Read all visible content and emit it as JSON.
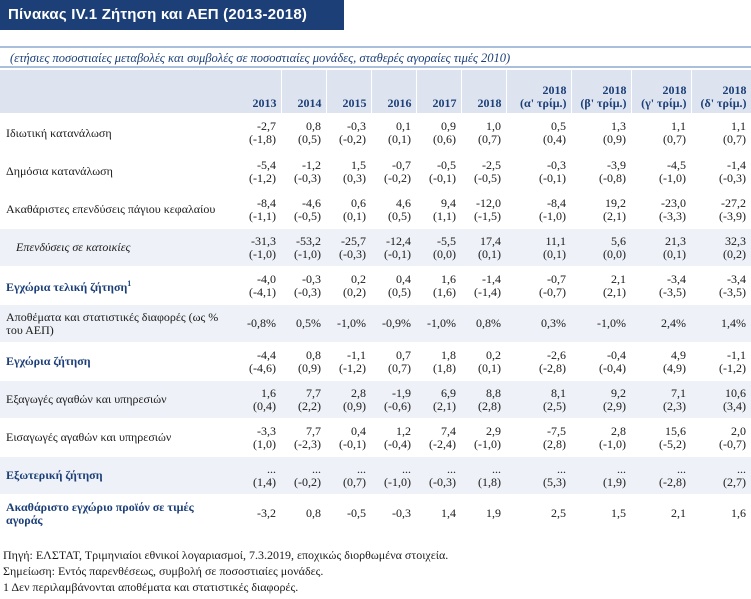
{
  "title": "Πίνακας IV.1 Ζήτηση και ΑΕΠ (2013-2018)",
  "subtitle": "(ετήσιες ποσοστιαίες μεταβολές και συμβολές σε ποσοστιαίες μονάδες, σταθερές αγοραίες τιμές 2010)",
  "columns": [
    [
      "2013",
      ""
    ],
    [
      "2014",
      ""
    ],
    [
      "2015",
      ""
    ],
    [
      "2016",
      ""
    ],
    [
      "2017",
      ""
    ],
    [
      "2018",
      ""
    ],
    [
      "2018",
      "(α' τρίμ.)"
    ],
    [
      "2018",
      "(β' τρίμ.)"
    ],
    [
      "2018",
      "(γ' τρίμ.)"
    ],
    [
      "2018",
      "(δ' τρίμ.)"
    ]
  ],
  "rows": [
    {
      "label": "Ιδιωτική κατανάλωση",
      "style": "normal",
      "shade": false,
      "h": 39,
      "v": [
        [
          "-2,7",
          "(-1,8)"
        ],
        [
          "0,8",
          "(0,5)"
        ],
        [
          "-0,3",
          "(-0,2)"
        ],
        [
          "0,1",
          "(0,1)"
        ],
        [
          "0,9",
          "(0,6)"
        ],
        [
          "1,0",
          "(0,7)"
        ],
        [
          "0,5",
          "(0,4)"
        ],
        [
          "1,3",
          "(0,9)"
        ],
        [
          "1,1",
          "(0,7)"
        ],
        [
          "1,1",
          "(0,7)"
        ]
      ]
    },
    {
      "label": "Δημόσια κατανάλωση",
      "style": "normal",
      "shade": false,
      "h": 38,
      "v": [
        [
          "-5,4",
          "(-1,2)"
        ],
        [
          "-1,2",
          "(-0,3)"
        ],
        [
          "1,5",
          "(0,3)"
        ],
        [
          "-0,7",
          "(-0,2)"
        ],
        [
          "-0,5",
          "(-0,1)"
        ],
        [
          "-2,5",
          "(-0,5)"
        ],
        [
          "-0,3",
          "(-0,1)"
        ],
        [
          "-3,9",
          "(-0,8)"
        ],
        [
          "-4,5",
          "(-1,0)"
        ],
        [
          "-1,4",
          "(-0,3)"
        ]
      ]
    },
    {
      "label": "Ακαθάριστες επενδύσεις πάγιου κεφαλαίου",
      "style": "normal",
      "shade": false,
      "h": 38,
      "v": [
        [
          "-8,4",
          "(-1,1)"
        ],
        [
          "-4,6",
          "(-0,5)"
        ],
        [
          "0,6",
          "(0,1)"
        ],
        [
          "4,6",
          "(0,5)"
        ],
        [
          "9,4",
          "(1,1)"
        ],
        [
          "-12,0",
          "(-1,5)"
        ],
        [
          "-8,4",
          "(-1,0)"
        ],
        [
          "19,2",
          "(2,1)"
        ],
        [
          "-23,0",
          "(-3,3)"
        ],
        [
          "-27,2",
          "(-3,9)"
        ]
      ]
    },
    {
      "label": "Επενδύσεις σε κατοικίες",
      "style": "ital",
      "shade": true,
      "h": 38,
      "v": [
        [
          "-31,3",
          "(-1,0)"
        ],
        [
          "-53,2",
          "(-1,0)"
        ],
        [
          "-25,7",
          "(-0,3)"
        ],
        [
          "-12,4",
          "(-0,1)"
        ],
        [
          "-5,5",
          "(0,0)"
        ],
        [
          "17,4",
          "(0,1)"
        ],
        [
          "11,1",
          "(0,1)"
        ],
        [
          "5,6",
          "(0,0)"
        ],
        [
          "21,3",
          "(0,1)"
        ],
        [
          "32,3",
          "(0,2)"
        ]
      ]
    },
    {
      "label": "Εγχώρια τελική ζήτηση",
      "sup": "1",
      "style": "bold",
      "shade": false,
      "h": 38,
      "v": [
        [
          "-4,0",
          "(-4,1)"
        ],
        [
          "-0,3",
          "(-0,3)"
        ],
        [
          "0,2",
          "(0,2)"
        ],
        [
          "0,4",
          "(0,5)"
        ],
        [
          "1,6",
          "(1,6)"
        ],
        [
          "-1,4",
          "(-1,4)"
        ],
        [
          "-0,7",
          "(-0,7)"
        ],
        [
          "2,1",
          "(2,1)"
        ],
        [
          "-3,4",
          "(-3,5)"
        ],
        [
          "-3,4",
          "(-3,5)"
        ]
      ]
    },
    {
      "label": "Αποθέματα και στατιστικές διαφορές (ως % του ΑΕΠ)",
      "style": "normal",
      "shade": true,
      "h": 38,
      "v": [
        [
          "-0,8%"
        ],
        [
          "0,5%"
        ],
        [
          "-1,0%"
        ],
        [
          "-0,9%"
        ],
        [
          "-1,0%"
        ],
        [
          "0,8%"
        ],
        [
          "0,3%"
        ],
        [
          "-1,0%"
        ],
        [
          "2,4%"
        ],
        [
          "1,4%"
        ]
      ]
    },
    {
      "label": "Εγχώρια ζήτηση",
      "style": "bold",
      "shade": false,
      "h": 38,
      "v": [
        [
          "-4,4",
          "(-4,6)"
        ],
        [
          "0,8",
          "(0,9)"
        ],
        [
          "-1,1",
          "(-1,2)"
        ],
        [
          "0,7",
          "(0,7)"
        ],
        [
          "1,8",
          "(1,8)"
        ],
        [
          "0,2",
          "(0,1)"
        ],
        [
          "-2,6",
          "(-2,8)"
        ],
        [
          "-0,4",
          "(-0,4)"
        ],
        [
          "4,9",
          "(4,9)"
        ],
        [
          "-1,1",
          "(-1,2)"
        ]
      ]
    },
    {
      "label": "Εξαγωγές αγαθών και υπηρεσιών",
      "style": "normal",
      "shade": true,
      "h": 38,
      "v": [
        [
          "1,6",
          "(0,4)"
        ],
        [
          "7,7",
          "(2,2)"
        ],
        [
          "2,8",
          "(0,9)"
        ],
        [
          "-1,9",
          "(-0,6)"
        ],
        [
          "6,9",
          "(2,1)"
        ],
        [
          "8,8",
          "(2,8)"
        ],
        [
          "8,1",
          "(2,5)"
        ],
        [
          "9,2",
          "(2,9)"
        ],
        [
          "7,1",
          "(2,3)"
        ],
        [
          "10,6",
          "(3,4)"
        ]
      ]
    },
    {
      "label": "Εισαγωγές αγαθών και υπηρεσιών",
      "style": "normal",
      "shade": false,
      "h": 38,
      "v": [
        [
          "-3,3",
          "(1,0)"
        ],
        [
          "7,7",
          "(-2,3)"
        ],
        [
          "0,4",
          "(-0,1)"
        ],
        [
          "1,2",
          "(-0,4)"
        ],
        [
          "7,4",
          "(-2,4)"
        ],
        [
          "2,9",
          "(-1,0)"
        ],
        [
          "-7,5",
          "(2,8)"
        ],
        [
          "2,8",
          "(-1,0)"
        ],
        [
          "15,6",
          "(-5,2)"
        ],
        [
          "2,0",
          "(-0,7)"
        ]
      ]
    },
    {
      "label": "Εξωτερική ζήτηση",
      "style": "bold",
      "shade": true,
      "h": 38,
      "v": [
        [
          "...",
          "(1,4)"
        ],
        [
          "...",
          "(-0,2)"
        ],
        [
          "...",
          "(0,7)"
        ],
        [
          "...",
          "(-1,0)"
        ],
        [
          "...",
          "(-0,3)"
        ],
        [
          "...",
          "(1,8)"
        ],
        [
          "...",
          "(5,3)"
        ],
        [
          "...",
          "(1,9)"
        ],
        [
          "...",
          "(-2,8)"
        ],
        [
          "...",
          "(2,7)"
        ]
      ]
    },
    {
      "label": "Ακαθάριστο εγχώριο προϊόν σε τιμές αγοράς",
      "style": "bold",
      "shade": false,
      "h": 38,
      "v": [
        [
          "-3,2"
        ],
        [
          "0,8"
        ],
        [
          "-0,5"
        ],
        [
          "-0,3"
        ],
        [
          "1,4"
        ],
        [
          "1,9"
        ],
        [
          "2,5"
        ],
        [
          "1,5"
        ],
        [
          "2,1"
        ],
        [
          "1,6"
        ]
      ]
    }
  ],
  "footnotes": [
    "Πηγή: ΕΛΣΤΑΤ, Τριμηνιαίοι εθνικοί λογαριασμοί, 7.3.2019, εποχικώς διορθωμένα στοιχεία.",
    "Σημείωση: Εντός παρενθέσεως, συμβολή σε ποσοστιαίες μονάδες.",
    "1 Δεν περιλαμβάνονται αποθέματα και στατιστικές διαφορές."
  ]
}
